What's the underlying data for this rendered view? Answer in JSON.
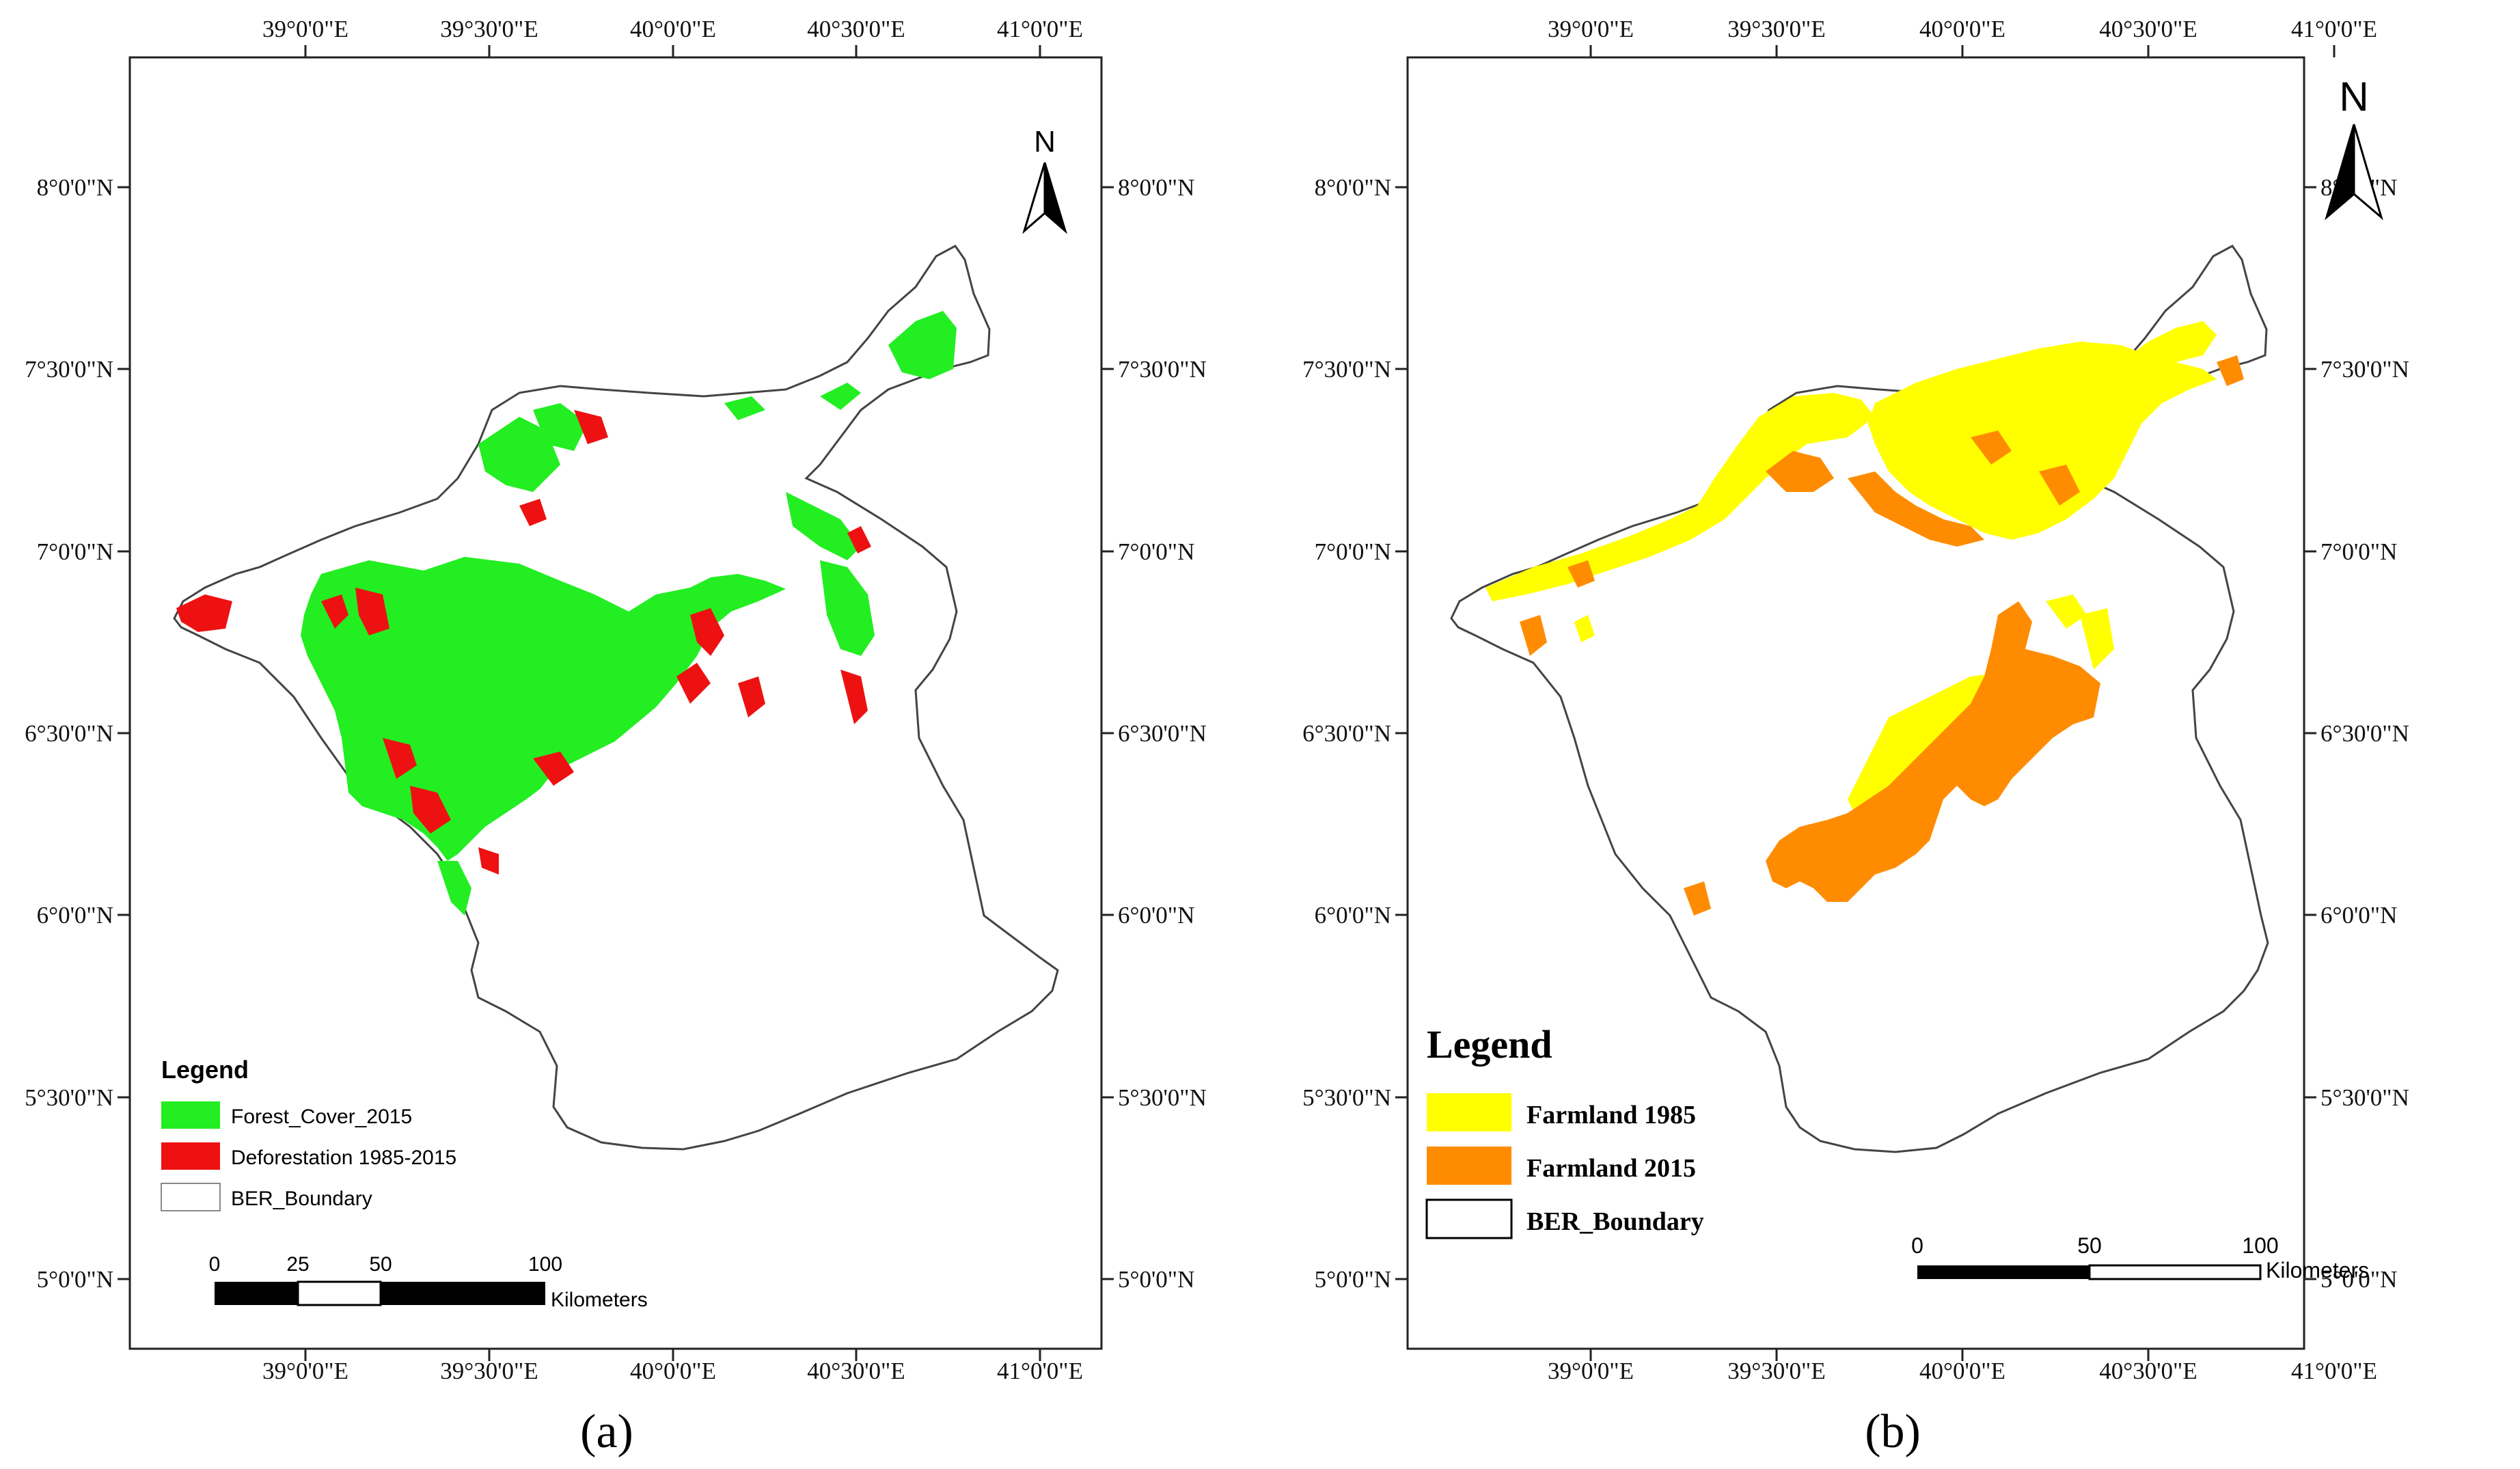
{
  "colors": {
    "forest": "#22ee22",
    "deforestation": "#ee1111",
    "farmland_1985": "#ffff00",
    "farmland_2015": "#ff8c00",
    "boundary": "#333333"
  },
  "axes": {
    "lon_labels": [
      "39°0'0\"E",
      "39°30'0\"E",
      "40°0'0\"E",
      "40°30'0\"E",
      "41°0'0\"E"
    ],
    "lat_labels": [
      "8°0'0\"N",
      "7°30'0\"N",
      "7°0'0\"N",
      "6°30'0\"N",
      "6°0'0\"N",
      "5°30'0\"N",
      "5°0'0\"N"
    ]
  },
  "panel_a": {
    "label": "(a)",
    "north": "N",
    "legend": {
      "title": "Legend",
      "items": [
        {
          "label": "Forest_Cover_2015",
          "color_key": "forest"
        },
        {
          "label": "Deforestation 1985-2015",
          "color_key": "deforestation"
        },
        {
          "label": "BER_Boundary",
          "color_key": "none"
        }
      ]
    },
    "scale": {
      "ticks": [
        "0",
        "25",
        "50",
        "100"
      ],
      "unit": "Kilometers"
    }
  },
  "panel_b": {
    "label": "(b)",
    "north": "N",
    "legend": {
      "title": "Legend",
      "items": [
        {
          "label": "Farmland 1985",
          "color_key": "farmland_1985"
        },
        {
          "label": "Farmland 2015",
          "color_key": "farmland_2015"
        },
        {
          "label": "BER_Boundary",
          "color_key": "none"
        }
      ]
    },
    "scale": {
      "ticks": [
        "0",
        "50",
        "100"
      ],
      "unit": "Kilometers"
    }
  }
}
